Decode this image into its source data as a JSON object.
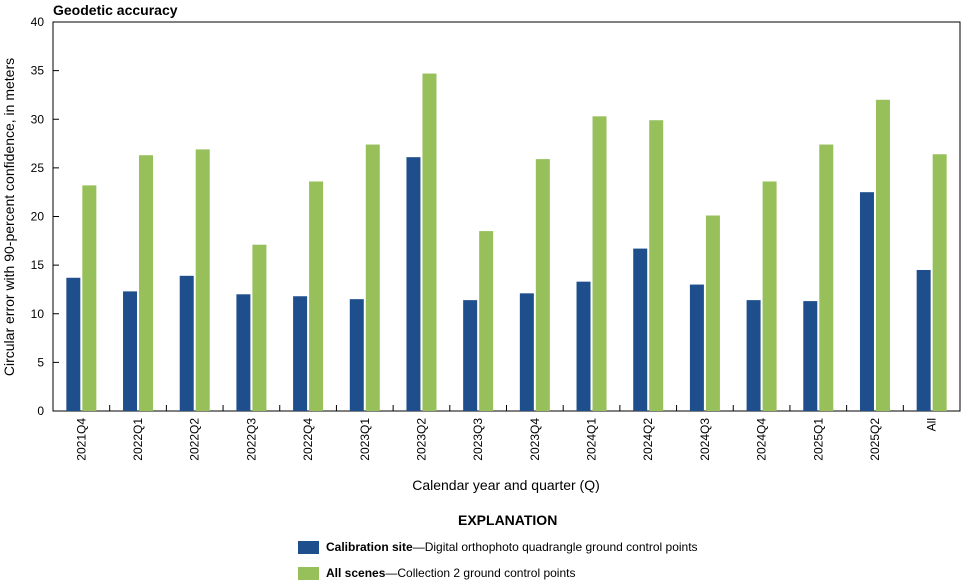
{
  "chart_data": {
    "type": "bar",
    "title": "Geodetic accuracy",
    "xlabel": "Calendar year and quarter (Q)",
    "ylabel": "Circular error with 90-percent confidence, in meters",
    "ylim": [
      0,
      40
    ],
    "yticks": [
      0,
      5,
      10,
      15,
      20,
      25,
      30,
      35,
      40
    ],
    "categories": [
      "2021Q4",
      "2022Q1",
      "2022Q2",
      "2022Q3",
      "2022Q4",
      "2023Q1",
      "2023Q2",
      "2023Q3",
      "2023Q4",
      "2024Q1",
      "2024Q2",
      "2024Q3",
      "2024Q4",
      "2025Q1",
      "2025Q2",
      "All"
    ],
    "series": [
      {
        "name": "Calibration site",
        "color": "#1f4e8c",
        "values": [
          13.7,
          12.3,
          13.9,
          12.0,
          11.8,
          11.5,
          26.1,
          11.4,
          12.1,
          13.3,
          16.7,
          13.0,
          11.4,
          11.3,
          22.5,
          14.5
        ]
      },
      {
        "name": "All scenes",
        "color": "#97bf5a",
        "values": [
          23.2,
          26.3,
          26.9,
          17.1,
          23.6,
          27.4,
          34.7,
          18.5,
          25.9,
          30.3,
          29.9,
          20.1,
          23.6,
          27.4,
          32.0,
          26.4
        ]
      }
    ]
  },
  "legend": {
    "heading": "EXPLANATION",
    "items": [
      {
        "name": "Calibration site",
        "desc": "—Digital orthophoto quadrangle ground control points",
        "color": "#1f4e8c"
      },
      {
        "name": "All scenes",
        "desc": "—Collection 2 ground control points",
        "color": "#97bf5a"
      }
    ]
  }
}
